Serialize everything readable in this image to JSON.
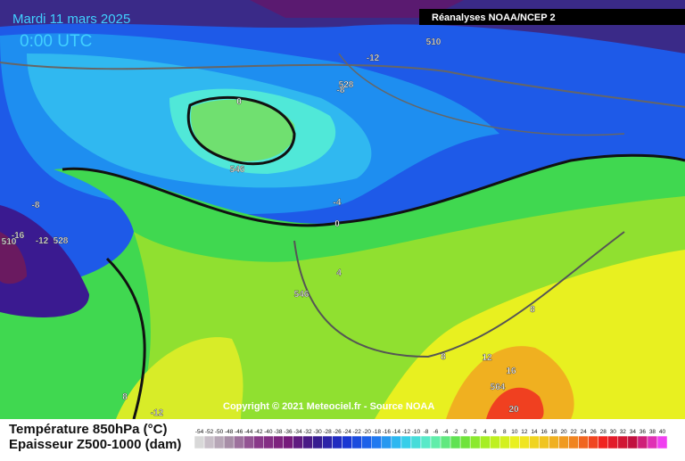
{
  "header": {
    "date": "Mardi 11 mars 2025",
    "time": "0:00 UTC",
    "source": "Réanalyses NOAA/NCEP 2"
  },
  "copyright": "Copyright © 2021 Meteociel.fr - Source NOAA",
  "legend": {
    "title_temperature": "Température 850hPa (°C)",
    "title_thickness": "Epaisseur Z500-1000 (dam)",
    "labels": [
      -54,
      -52,
      -50,
      -48,
      -46,
      -44,
      -42,
      -40,
      -38,
      -36,
      -34,
      -32,
      -30,
      -28,
      -26,
      -24,
      -22,
      -20,
      -18,
      -16,
      -14,
      -12,
      -10,
      -8,
      -6,
      -4,
      -2,
      0,
      2,
      4,
      6,
      8,
      10,
      12,
      14,
      16,
      18,
      20,
      22,
      24,
      26,
      28,
      30,
      32,
      34,
      36,
      38,
      40
    ],
    "colors": [
      "#d8d8d8",
      "#a890a8",
      "#8a3a8a",
      "#7a1a7a",
      "#3a1a8a",
      "#1a30d0",
      "#1e6ef0",
      "#30c8f0",
      "#60f0c0",
      "#60e040",
      "#b0f020",
      "#f0f020",
      "#f0c020",
      "#f08020",
      "#f02020",
      "#c01040",
      "#f040f0"
    ]
  },
  "contour_labels": [
    "510",
    "-12",
    "528",
    "-8",
    "0",
    "546",
    "-4",
    "0",
    "-8",
    "510",
    "-16",
    "-12",
    "528",
    "4",
    "546",
    "8",
    "8",
    "12",
    "16",
    "564",
    "20",
    "8",
    "-12"
  ]
}
